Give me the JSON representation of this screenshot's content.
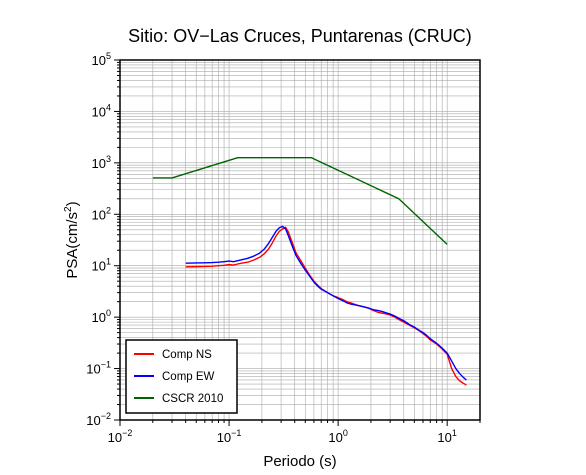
{
  "chart_data": {
    "type": "line",
    "title": "Sitio: OV−Las Cruces, Puntarenas (CRUC)",
    "xlabel": "Periodo (s)",
    "ylabel_main": "PSA(cm/s",
    "ylabel_sup": "2",
    "ylabel_close": ")",
    "x_scale": "log",
    "y_scale": "log",
    "xlim": [
      0.01,
      20
    ],
    "ylim": [
      0.01,
      100000
    ],
    "grid": true,
    "legend_position": "bottom-left",
    "x_ticks": [
      {
        "value": 0.01,
        "base": "10",
        "exp": "−2"
      },
      {
        "value": 0.1,
        "base": "10",
        "exp": "−1"
      },
      {
        "value": 1,
        "base": "10",
        "exp": "0"
      },
      {
        "value": 10,
        "base": "10",
        "exp": "1"
      }
    ],
    "y_ticks": [
      {
        "value": 0.01,
        "base": "10",
        "exp": "−2"
      },
      {
        "value": 0.1,
        "base": "10",
        "exp": "−1"
      },
      {
        "value": 1,
        "base": "10",
        "exp": "0"
      },
      {
        "value": 10,
        "base": "10",
        "exp": "1"
      },
      {
        "value": 100,
        "base": "10",
        "exp": "2"
      },
      {
        "value": 1000,
        "base": "10",
        "exp": "3"
      },
      {
        "value": 10000,
        "base": "10",
        "exp": "4"
      },
      {
        "value": 100000,
        "base": "10",
        "exp": "5"
      }
    ],
    "series": [
      {
        "name": "Comp NS",
        "color": "#ff0000",
        "points": [
          [
            0.04,
            9.5
          ],
          [
            0.05,
            9.6
          ],
          [
            0.06,
            9.7
          ],
          [
            0.07,
            9.8
          ],
          [
            0.08,
            10.0
          ],
          [
            0.09,
            10.2
          ],
          [
            0.1,
            10.5
          ],
          [
            0.11,
            10.3
          ],
          [
            0.12,
            10.8
          ],
          [
            0.13,
            11.2
          ],
          [
            0.15,
            11.8
          ],
          [
            0.17,
            13.0
          ],
          [
            0.19,
            14.5
          ],
          [
            0.21,
            17.0
          ],
          [
            0.23,
            21.0
          ],
          [
            0.25,
            28.0
          ],
          [
            0.27,
            38.0
          ],
          [
            0.29,
            47.0
          ],
          [
            0.31,
            52.0
          ],
          [
            0.33,
            56.0
          ],
          [
            0.35,
            45.0
          ],
          [
            0.38,
            28.0
          ],
          [
            0.41,
            18.0
          ],
          [
            0.45,
            13.0
          ],
          [
            0.5,
            9.0
          ],
          [
            0.55,
            6.5
          ],
          [
            0.6,
            5.0
          ],
          [
            0.65,
            4.2
          ],
          [
            0.7,
            3.6
          ],
          [
            0.8,
            3.0
          ],
          [
            0.9,
            2.6
          ],
          [
            1.0,
            2.4
          ],
          [
            1.1,
            2.2
          ],
          [
            1.2,
            2.0
          ],
          [
            1.3,
            1.9
          ],
          [
            1.4,
            1.8
          ],
          [
            1.5,
            1.7
          ],
          [
            1.7,
            1.6
          ],
          [
            1.9,
            1.5
          ],
          [
            2.1,
            1.35
          ],
          [
            2.3,
            1.25
          ],
          [
            2.5,
            1.2
          ],
          [
            2.8,
            1.15
          ],
          [
            3.0,
            1.1
          ],
          [
            3.3,
            1.0
          ],
          [
            3.6,
            0.9
          ],
          [
            4.0,
            0.8
          ],
          [
            4.5,
            0.7
          ],
          [
            5.0,
            0.62
          ],
          [
            5.5,
            0.55
          ],
          [
            6.0,
            0.48
          ],
          [
            6.5,
            0.42
          ],
          [
            7.0,
            0.36
          ],
          [
            8.0,
            0.3
          ],
          [
            9.0,
            0.24
          ],
          [
            10.0,
            0.19
          ],
          [
            11.0,
            0.1
          ],
          [
            12.0,
            0.07
          ],
          [
            13.0,
            0.058
          ],
          [
            14.0,
            0.052
          ],
          [
            15.0,
            0.048
          ]
        ]
      },
      {
        "name": "Comp EW",
        "color": "#0000ff",
        "points": [
          [
            0.04,
            11.2
          ],
          [
            0.05,
            11.3
          ],
          [
            0.06,
            11.4
          ],
          [
            0.07,
            11.5
          ],
          [
            0.08,
            11.7
          ],
          [
            0.09,
            12.0
          ],
          [
            0.1,
            12.3
          ],
          [
            0.11,
            12.0
          ],
          [
            0.12,
            12.5
          ],
          [
            0.13,
            13.0
          ],
          [
            0.15,
            14.0
          ],
          [
            0.17,
            15.5
          ],
          [
            0.19,
            17.5
          ],
          [
            0.21,
            21.0
          ],
          [
            0.23,
            27.0
          ],
          [
            0.25,
            36.0
          ],
          [
            0.27,
            47.0
          ],
          [
            0.29,
            55.0
          ],
          [
            0.31,
            58.0
          ],
          [
            0.33,
            52.0
          ],
          [
            0.35,
            38.0
          ],
          [
            0.38,
            24.0
          ],
          [
            0.41,
            16.0
          ],
          [
            0.45,
            11.5
          ],
          [
            0.5,
            8.2
          ],
          [
            0.55,
            6.2
          ],
          [
            0.6,
            4.8
          ],
          [
            0.65,
            4.0
          ],
          [
            0.7,
            3.5
          ],
          [
            0.8,
            3.0
          ],
          [
            0.9,
            2.6
          ],
          [
            1.0,
            2.3
          ],
          [
            1.1,
            2.1
          ],
          [
            1.2,
            1.9
          ],
          [
            1.3,
            1.8
          ],
          [
            1.4,
            1.75
          ],
          [
            1.5,
            1.7
          ],
          [
            1.7,
            1.6
          ],
          [
            1.9,
            1.5
          ],
          [
            2.1,
            1.4
          ],
          [
            2.3,
            1.35
          ],
          [
            2.5,
            1.3
          ],
          [
            2.8,
            1.2
          ],
          [
            3.0,
            1.15
          ],
          [
            3.3,
            1.05
          ],
          [
            3.6,
            0.95
          ],
          [
            4.0,
            0.85
          ],
          [
            4.5,
            0.72
          ],
          [
            5.0,
            0.64
          ],
          [
            5.5,
            0.56
          ],
          [
            6.0,
            0.5
          ],
          [
            6.5,
            0.44
          ],
          [
            7.0,
            0.38
          ],
          [
            8.0,
            0.31
          ],
          [
            9.0,
            0.25
          ],
          [
            10.0,
            0.2
          ],
          [
            11.0,
            0.14
          ],
          [
            12.0,
            0.1
          ],
          [
            13.0,
            0.08
          ],
          [
            14.0,
            0.068
          ],
          [
            15.0,
            0.06
          ]
        ]
      },
      {
        "name": "CSCR 2010",
        "color": "#006400",
        "points": [
          [
            0.02,
            510
          ],
          [
            0.03,
            510
          ],
          [
            0.12,
            1260
          ],
          [
            0.57,
            1260
          ],
          [
            3.6,
            200
          ],
          [
            10.0,
            26
          ]
        ]
      }
    ]
  }
}
